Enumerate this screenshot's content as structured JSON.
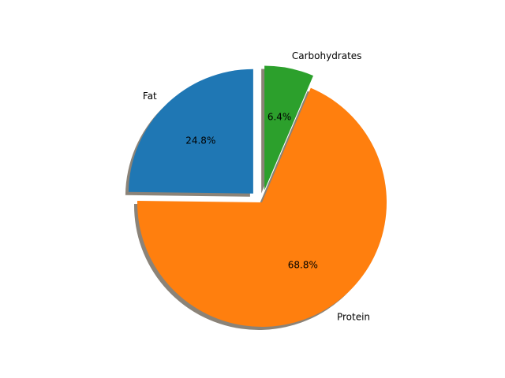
{
  "chart_data": {
    "type": "pie",
    "title": "",
    "slices": [
      {
        "label": "Fat",
        "pct_label": "24.8%",
        "value": 24.8,
        "color": "#1f77b4",
        "exploded": true
      },
      {
        "label": "Protein",
        "pct_label": "68.8%",
        "value": 68.8,
        "color": "#ff7f0e",
        "exploded": false
      },
      {
        "label": "Carbohydrates",
        "pct_label": "6.4%",
        "value": 6.4,
        "color": "#2ca02c",
        "exploded": true
      }
    ],
    "start_angle_deg": 90,
    "direction": "counterclockwise",
    "shadow": true,
    "shadow_color": "#8b8378"
  }
}
